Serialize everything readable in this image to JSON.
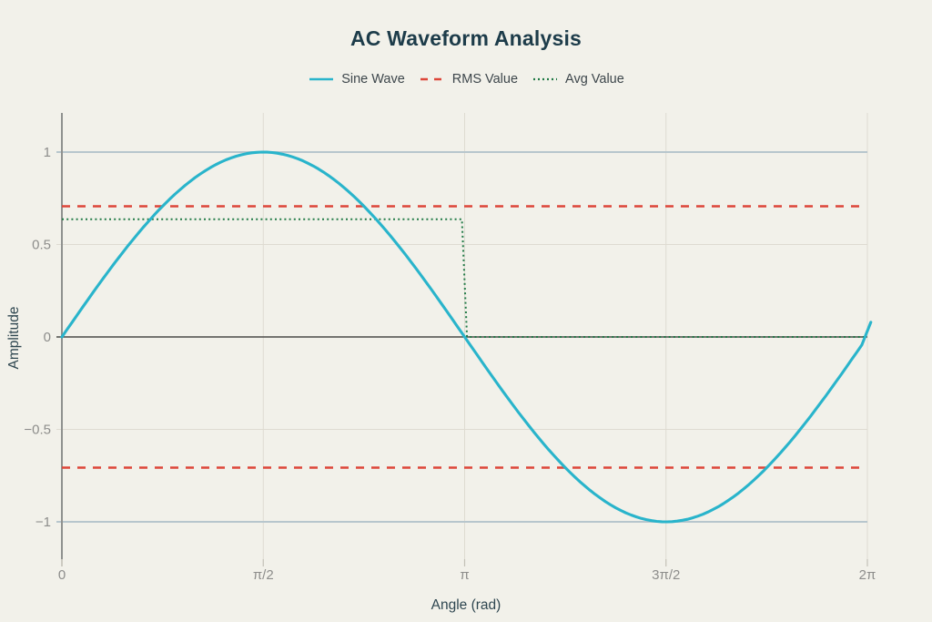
{
  "title": "AC Waveform Analysis",
  "legend": [
    {
      "label": "Sine Wave",
      "color": "#29b4cb",
      "style": "solid"
    },
    {
      "label": "RMS Value",
      "color": "#dd4639",
      "style": "dashed"
    },
    {
      "label": "Avg Value",
      "color": "#217a46",
      "style": "dotted"
    }
  ],
  "axes": {
    "x_label": "Angle (rad)",
    "y_label": "Amplitude"
  },
  "chart_data": {
    "type": "line",
    "title": "AC Waveform Analysis",
    "xlabel": "Angle (rad)",
    "ylabel": "Amplitude",
    "xlim": [
      0,
      6.31
    ],
    "ylim": [
      -1.2,
      1.21
    ],
    "grid": true,
    "legend_position": "top-center",
    "x_ticks": [
      {
        "label": "0",
        "value": 0
      },
      {
        "label": "π/2",
        "value": 1.5708
      },
      {
        "label": "π",
        "value": 3.1416
      },
      {
        "label": "3π/2",
        "value": 4.7124
      },
      {
        "label": "2π",
        "value": 6.2832
      }
    ],
    "y_ticks": [
      {
        "label": "1",
        "value": 1
      },
      {
        "label": "0.5",
        "value": 0.5
      },
      {
        "label": "0",
        "value": 0
      },
      {
        "label": "−0.5",
        "value": -0.5
      },
      {
        "label": "−1",
        "value": -1
      }
    ],
    "series": [
      {
        "name": "Sine Wave",
        "type": "function",
        "expression": "sin(x)",
        "amplitude": 1,
        "x_start": 0,
        "x_end": 6.24,
        "step": 0.04,
        "end_point": [
          6.31,
          0.08
        ],
        "color": "#29b4cb",
        "line_style": "solid",
        "line_width": 3.1
      },
      {
        "name": "RMS Value",
        "type": "hline",
        "values": [
          0.7071,
          -0.7071
        ],
        "color": "#dd4639",
        "line_style": "dashed",
        "line_width": 2.5
      },
      {
        "name": "Avg Value",
        "type": "polyline",
        "points": [
          [
            0,
            0.6366
          ],
          [
            3.12,
            0.6366
          ],
          [
            3.16,
            0
          ],
          [
            6.2832,
            0
          ]
        ],
        "color": "#217a46",
        "line_style": "dotted",
        "line_width": 2
      }
    ]
  },
  "colors": {
    "background": "#f2f1ea",
    "title_text": "#1d3c4a",
    "axis_title_text": "#2e4650",
    "tick_text": "#8d8d8b",
    "legend_text": "#3d464b",
    "grid_major": "#b7c6cd",
    "grid_minor": "#dedbd1",
    "zero_line": "#4a4a48",
    "axis_line": "#8f918f",
    "tick_stub": "#c3c1b7",
    "sine": "#29b4cb",
    "rms": "#dd4639",
    "avg": "#217a46"
  }
}
